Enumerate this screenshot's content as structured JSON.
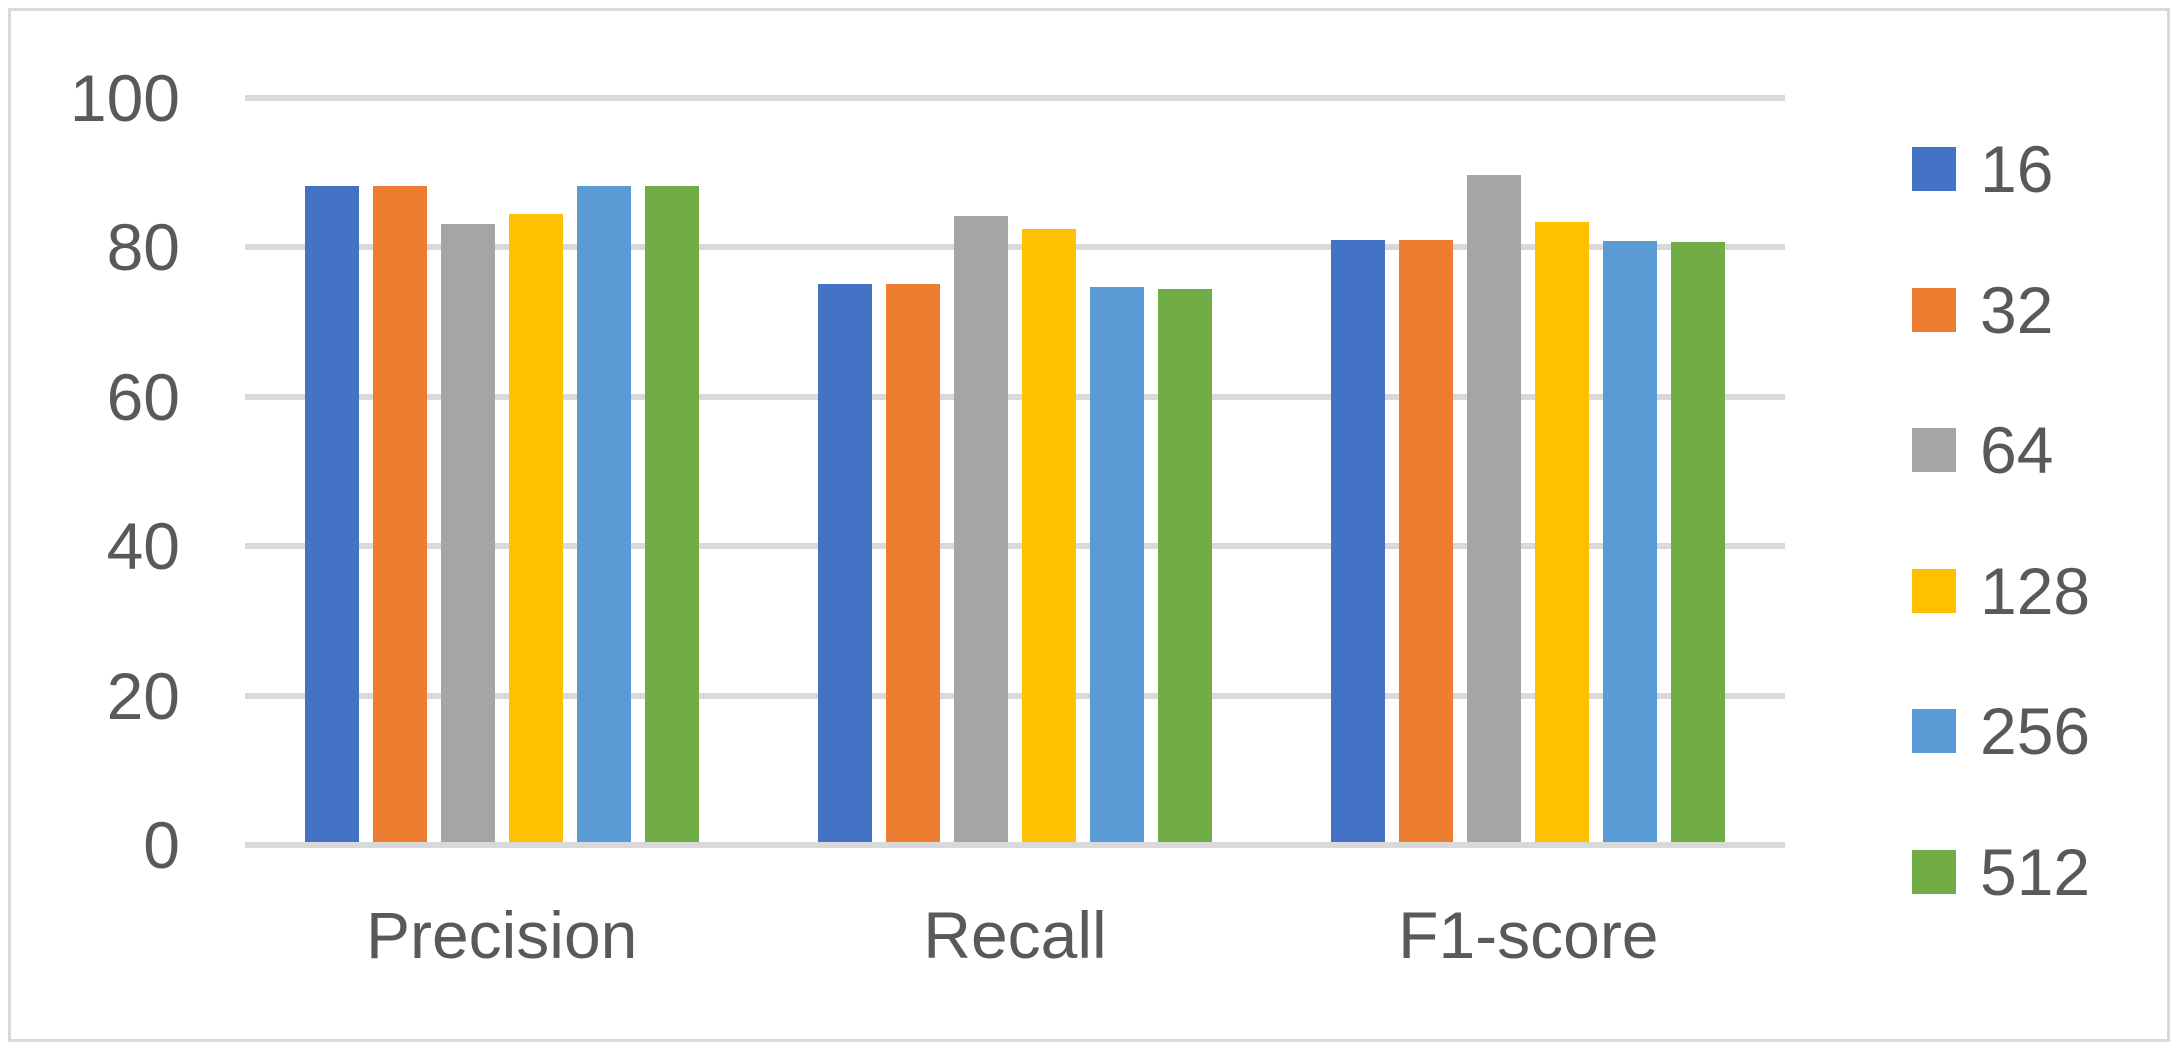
{
  "chart_data": {
    "type": "bar",
    "title": "",
    "xlabel": "",
    "ylabel": "",
    "categories": [
      "Precision",
      "Recall",
      "F1-score"
    ],
    "series": [
      {
        "name": "16",
        "color": "#4472C4",
        "values": [
          87.7,
          74.7,
          80.6
        ]
      },
      {
        "name": "32",
        "color": "#ED7D31",
        "values": [
          87.7,
          74.7,
          80.6
        ]
      },
      {
        "name": "64",
        "color": "#A5A5A5",
        "values": [
          82.7,
          83.8,
          89.2
        ]
      },
      {
        "name": "128",
        "color": "#FFC000",
        "values": [
          84.0,
          82.0,
          82.9
        ]
      },
      {
        "name": "256",
        "color": "#5B9BD5",
        "values": [
          87.8,
          74.3,
          80.4
        ]
      },
      {
        "name": "512",
        "color": "#70AD47",
        "values": [
          87.8,
          74.0,
          80.3
        ]
      }
    ],
    "ylim": [
      0,
      100
    ],
    "yticks": [
      0,
      20,
      40,
      60,
      80,
      100
    ],
    "grid": true,
    "legend_position": "right",
    "legend_labels": [
      "16",
      "32",
      "64",
      "128",
      "256",
      "512"
    ]
  },
  "colors": {
    "gridline": "#d9d9d9",
    "axis_line": "#d9d9d9",
    "tick_text": "#595959",
    "frame_border": "#d9d9d9",
    "background": "#ffffff"
  }
}
